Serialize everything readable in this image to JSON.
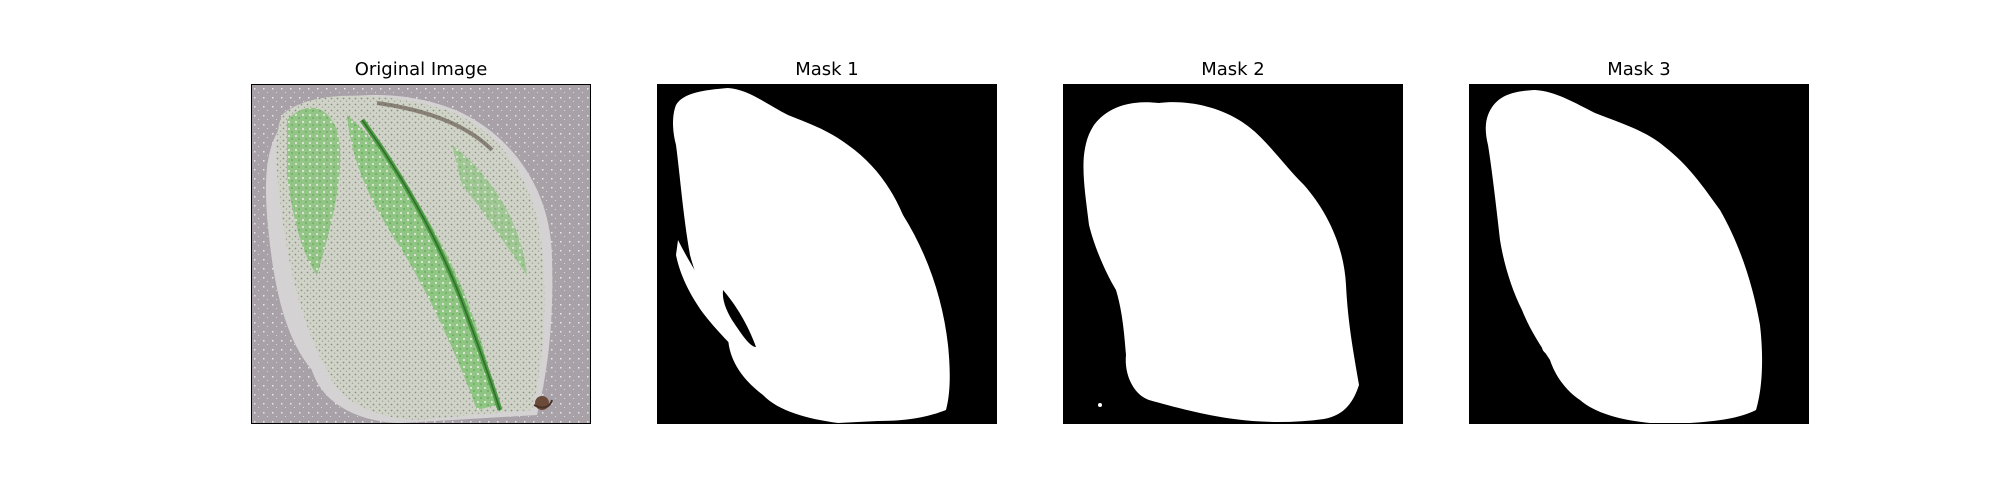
{
  "figure": {
    "panels": [
      {
        "title": "Original Image"
      },
      {
        "title": "Mask 1"
      },
      {
        "title": "Mask 2"
      },
      {
        "title": "Mask 3"
      }
    ]
  },
  "colors": {
    "background": "#ffffff",
    "mask_background": "#000000",
    "mask_foreground": "#ffffff",
    "photo_background": "#a8a2a8",
    "leaf_light": "#dfe3d8",
    "leaf_green": "#5fbf55",
    "leaf_dark_green": "#3f8f3a"
  }
}
